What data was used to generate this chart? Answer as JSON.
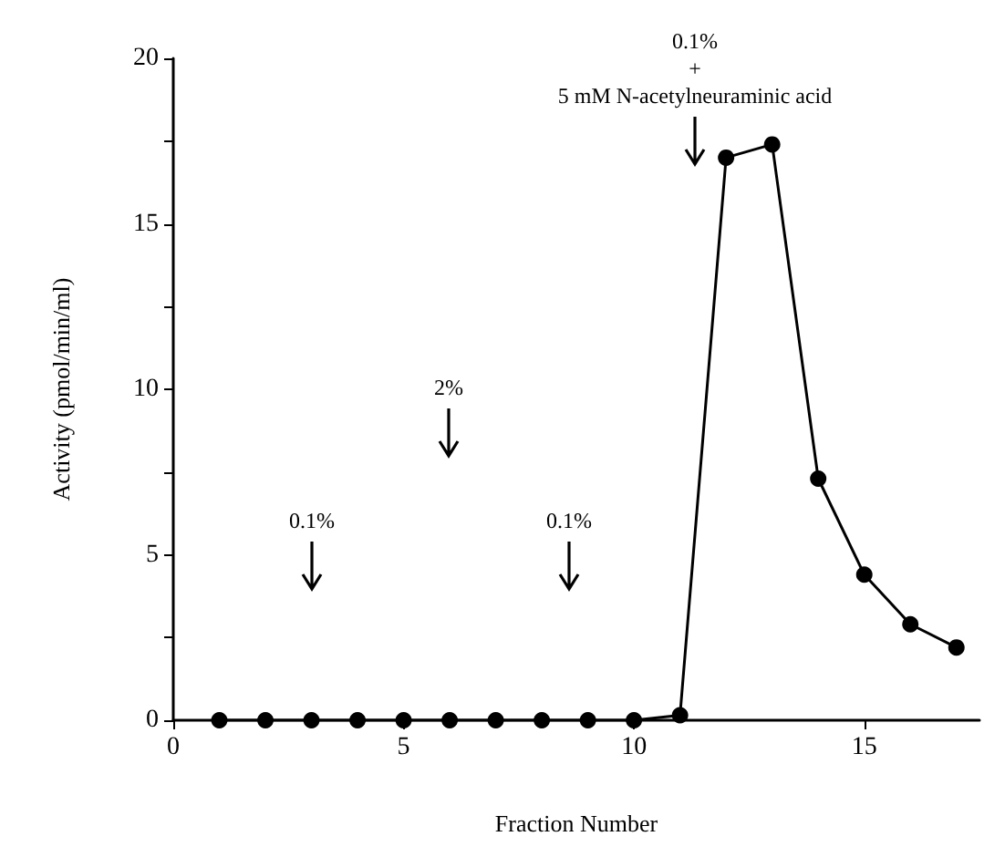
{
  "chart_data": {
    "type": "line",
    "xlabel": "Fraction Number",
    "ylabel": "Activity (pmol/min/ml)",
    "x": [
      1,
      2,
      3,
      4,
      5,
      6,
      7,
      8,
      9,
      10,
      11,
      12,
      13,
      14,
      15,
      16,
      17
    ],
    "series": [
      {
        "color": "#000000",
        "values": [
          0,
          0,
          0,
          0,
          0,
          0,
          0,
          0,
          0,
          0,
          0.15,
          17.0,
          17.4,
          7.3,
          4.4,
          2.9,
          2.2
        ]
      }
    ],
    "xlim": [
      0,
      17.5
    ],
    "xticks": [
      0,
      5,
      10,
      15
    ],
    "ylim": [
      0,
      20
    ],
    "yticks": [
      0,
      {
        "value": 2.5,
        "label": null
      },
      5,
      {
        "value": 7.5,
        "label": null
      },
      10,
      {
        "value": 12.5,
        "label": null
      },
      15,
      {
        "value": 17.5,
        "label": null
      },
      20
    ],
    "annotations": [
      "0.1%",
      "2%",
      "0.1%",
      "0.1%\n+\n5 mM N-acetylneuraminic acid"
    ],
    "grid": false,
    "marker": "circle",
    "line_style": "solid"
  }
}
